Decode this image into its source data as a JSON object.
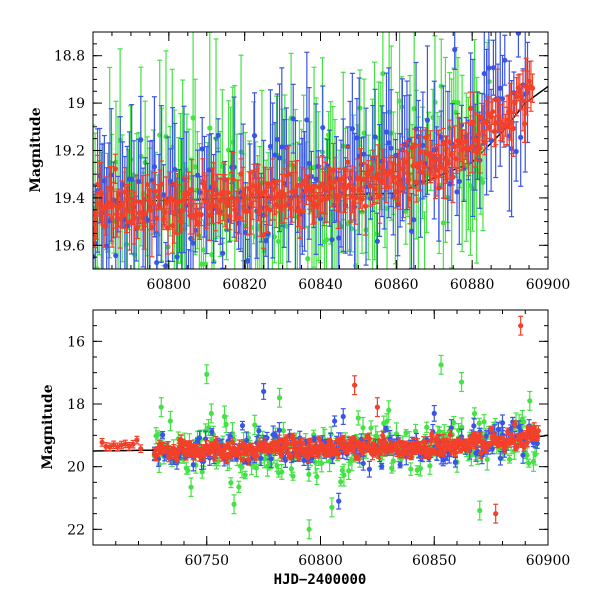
{
  "chart_data": [
    {
      "type": "scatter",
      "panel": "top",
      "ylabel": "Magnitude",
      "xlabel": "",
      "xlim": [
        60780,
        60900
      ],
      "ylim": [
        19.7,
        18.7
      ],
      "y_inverted": true,
      "x_ticks": [
        "60800",
        "60820",
        "60840",
        "60860",
        "60880",
        "60900"
      ],
      "y_ticks": [
        "18.8",
        "19",
        "19.2",
        "19.4",
        "19.6"
      ],
      "grid": false,
      "series": [
        {
          "color": "#3a55e6",
          "values_desc": "blue photometry points with error bars"
        },
        {
          "color": "#44e244",
          "values_desc": "green photometry points with error bars"
        },
        {
          "color": "#f2402a",
          "values_desc": "red photometry points with error bars"
        }
      ],
      "model_curve": {
        "color": "#000000",
        "x": [
          60780,
          60860,
          60880,
          60888,
          60894,
          60900
        ],
        "y": [
          19.42,
          19.38,
          19.25,
          19.12,
          19.0,
          18.93
        ]
      },
      "red_trend": {
        "x": [
          60780,
          60800,
          60820,
          60840,
          60860,
          60875,
          60885,
          60895
        ],
        "y": [
          19.45,
          19.43,
          19.4,
          19.37,
          19.3,
          19.22,
          19.1,
          18.95
        ]
      }
    },
    {
      "type": "scatter",
      "panel": "bottom",
      "ylabel": "Magnitude",
      "xlabel": "HJD−2400000",
      "xlim": [
        60700,
        60900
      ],
      "ylim": [
        22.5,
        15
      ],
      "y_inverted": true,
      "x_ticks": [
        "60750",
        "60800",
        "60850",
        "60900"
      ],
      "y_ticks": [
        "16",
        "18",
        "20",
        "22"
      ],
      "grid": false,
      "series": [
        {
          "color": "#3a55e6"
        },
        {
          "color": "#44e244"
        },
        {
          "color": "#f2402a"
        }
      ],
      "model_curve": {
        "color": "#000000",
        "x": [
          60700,
          60850,
          60880,
          60900
        ],
        "y": [
          19.5,
          19.35,
          19.2,
          19.0
        ]
      },
      "outliers_green": [
        [
          60730,
          18.1
        ],
        [
          60750,
          17.05
        ],
        [
          60752,
          18.3
        ],
        [
          60782,
          17.8
        ],
        [
          60805,
          21.3
        ],
        [
          60830,
          18.2
        ],
        [
          60853,
          16.75
        ],
        [
          60862,
          17.3
        ],
        [
          60870,
          21.4
        ],
        [
          60892,
          17.9
        ],
        [
          60795,
          22.0
        ],
        [
          60762,
          21.2
        ]
      ],
      "outliers_blue": [
        [
          60775,
          17.6
        ],
        [
          60810,
          18.4
        ],
        [
          60808,
          21.1
        ],
        [
          60850,
          18.3
        ],
        [
          60880,
          18.6
        ]
      ],
      "outliers_red": [
        [
          60815,
          17.4
        ],
        [
          60825,
          18.1
        ],
        [
          60888,
          15.5
        ],
        [
          60877,
          21.5
        ]
      ]
    }
  ]
}
